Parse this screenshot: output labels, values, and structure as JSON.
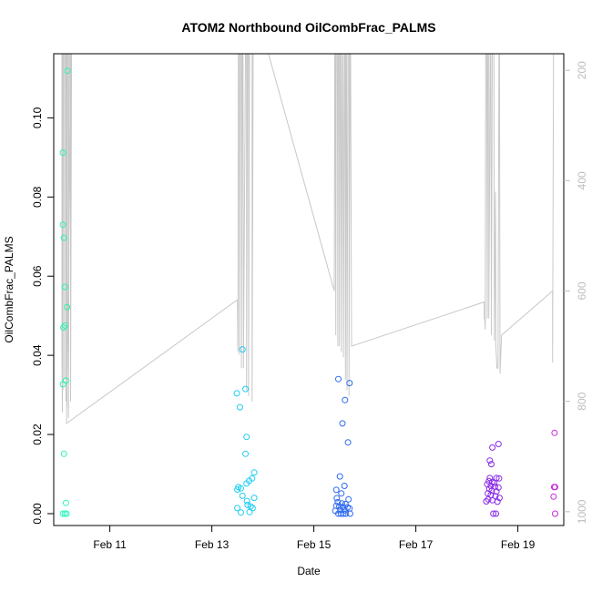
{
  "chart_data": {
    "type": "scatter",
    "title": "ATOM2 Northbound OilCombFrac_PALMS",
    "xlabel": "Date",
    "ylabel": "OilCombFrac_PALMS",
    "xlim": [
      9.9,
      19.9
    ],
    "ylim": [
      -0.003,
      0.1162
    ],
    "x_ticks": [
      {
        "value": 11,
        "label": "Feb 11"
      },
      {
        "value": 13,
        "label": "Feb 13"
      },
      {
        "value": 15,
        "label": "Feb 15"
      },
      {
        "value": 17,
        "label": "Feb 17"
      },
      {
        "value": 19,
        "label": "Feb 19"
      }
    ],
    "y_ticks": [
      {
        "value": 0.0,
        "label": "0.00"
      },
      {
        "value": 0.02,
        "label": "0.02"
      },
      {
        "value": 0.04,
        "label": "0.04"
      },
      {
        "value": 0.06,
        "label": "0.06"
      },
      {
        "value": 0.08,
        "label": "0.08"
      },
      {
        "value": 0.1,
        "label": "0.10"
      }
    ],
    "y2_lim": [
      1025,
      170
    ],
    "y2_ticks": [
      {
        "value": 200,
        "label": "200"
      },
      {
        "value": 400,
        "label": "400"
      },
      {
        "value": 600,
        "label": "600"
      },
      {
        "value": 800,
        "label": "800"
      },
      {
        "value": 1000,
        "label": "1000"
      }
    ],
    "y2_color": "#bdbdbd",
    "line_color": "#c8c8c8",
    "grid": false,
    "points": [
      {
        "x": 10.08,
        "y": 0.0912,
        "color": "#2af5a8"
      },
      {
        "x": 10.08,
        "y": 0.073,
        "color": "#2af5a8"
      },
      {
        "x": 10.1,
        "y": 0.0697,
        "color": "#2af5a8"
      },
      {
        "x": 10.12,
        "y": 0.0573,
        "color": "#2af5a8"
      },
      {
        "x": 10.16,
        "y": 0.0522,
        "color": "#2af5a8"
      },
      {
        "x": 10.09,
        "y": 0.047,
        "color": "#2af5a8"
      },
      {
        "x": 10.12,
        "y": 0.0475,
        "color": "#2af5a8"
      },
      {
        "x": 10.14,
        "y": 0.0336,
        "color": "#2af5a8"
      },
      {
        "x": 10.08,
        "y": 0.0327,
        "color": "#2af5a8"
      },
      {
        "x": 10.17,
        "y": 0.1119,
        "color": "#2af5a8"
      },
      {
        "x": 10.1,
        "y": 0.0151,
        "color": "#2af5ae"
      },
      {
        "x": 10.14,
        "y": 0.0027,
        "color": "#2ff5c0"
      },
      {
        "x": 10.08,
        "y": 0.0,
        "color": "#2ff5c0"
      },
      {
        "x": 10.12,
        "y": 0.0,
        "color": "#2ff5c0"
      },
      {
        "x": 10.15,
        "y": 0.0,
        "color": "#2ff5c0"
      },
      {
        "x": 13.49,
        "y": 0.0304,
        "color": "#1ecdf2"
      },
      {
        "x": 13.6,
        "y": 0.0415,
        "color": "#1ecdf2"
      },
      {
        "x": 13.55,
        "y": 0.0269,
        "color": "#1ecdf2"
      },
      {
        "x": 13.66,
        "y": 0.0315,
        "color": "#1ecdf2"
      },
      {
        "x": 13.68,
        "y": 0.0194,
        "color": "#1ecdf2"
      },
      {
        "x": 13.66,
        "y": 0.0151,
        "color": "#1ecdf2"
      },
      {
        "x": 13.83,
        "y": 0.0104,
        "color": "#1ecdf2"
      },
      {
        "x": 13.79,
        "y": 0.0089,
        "color": "#1ecdf2"
      },
      {
        "x": 13.73,
        "y": 0.0083,
        "color": "#1ecdf2"
      },
      {
        "x": 13.68,
        "y": 0.0076,
        "color": "#1ecdf2"
      },
      {
        "x": 13.52,
        "y": 0.0067,
        "color": "#1ecdf2"
      },
      {
        "x": 13.57,
        "y": 0.0064,
        "color": "#1ecdf2"
      },
      {
        "x": 13.5,
        "y": 0.0061,
        "color": "#1ecdf2"
      },
      {
        "x": 13.6,
        "y": 0.0045,
        "color": "#1ecdf2"
      },
      {
        "x": 13.83,
        "y": 0.004,
        "color": "#1ecdf2"
      },
      {
        "x": 13.69,
        "y": 0.0032,
        "color": "#1ecdf2"
      },
      {
        "x": 13.7,
        "y": 0.0022,
        "color": "#1ecdf2"
      },
      {
        "x": 13.76,
        "y": 0.0018,
        "color": "#1ecdf2"
      },
      {
        "x": 13.8,
        "y": 0.0014,
        "color": "#1ecdf2"
      },
      {
        "x": 13.5,
        "y": 0.0014,
        "color": "#1ecdf2"
      },
      {
        "x": 13.57,
        "y": 0.0003,
        "color": "#1ecdf2"
      },
      {
        "x": 13.74,
        "y": 0.0004,
        "color": "#1ecdf2"
      },
      {
        "x": 15.48,
        "y": 0.034,
        "color": "#2f6af0"
      },
      {
        "x": 15.7,
        "y": 0.033,
        "color": "#2f6af0"
      },
      {
        "x": 15.61,
        "y": 0.0287,
        "color": "#2f6af0"
      },
      {
        "x": 15.56,
        "y": 0.0228,
        "color": "#2f6af0"
      },
      {
        "x": 15.67,
        "y": 0.018,
        "color": "#2f6af0"
      },
      {
        "x": 15.51,
        "y": 0.0094,
        "color": "#2f6af0"
      },
      {
        "x": 15.6,
        "y": 0.007,
        "color": "#2f6af0"
      },
      {
        "x": 15.44,
        "y": 0.006,
        "color": "#2f6af0"
      },
      {
        "x": 15.54,
        "y": 0.0051,
        "color": "#2f6af0"
      },
      {
        "x": 15.45,
        "y": 0.0039,
        "color": "#2f6af0"
      },
      {
        "x": 15.68,
        "y": 0.0036,
        "color": "#2f6af0"
      },
      {
        "x": 15.47,
        "y": 0.0029,
        "color": "#2f6af0"
      },
      {
        "x": 15.55,
        "y": 0.0026,
        "color": "#2f6af0"
      },
      {
        "x": 15.62,
        "y": 0.0024,
        "color": "#2f6af0"
      },
      {
        "x": 15.44,
        "y": 0.002,
        "color": "#2f6af0"
      },
      {
        "x": 15.5,
        "y": 0.0018,
        "color": "#2f6af0"
      },
      {
        "x": 15.57,
        "y": 0.0017,
        "color": "#2f6af0"
      },
      {
        "x": 15.66,
        "y": 0.0016,
        "color": "#2f6af0"
      },
      {
        "x": 15.7,
        "y": 0.0013,
        "color": "#2f6af0"
      },
      {
        "x": 15.52,
        "y": 0.0009,
        "color": "#2f6af0"
      },
      {
        "x": 15.6,
        "y": 0.0008,
        "color": "#2f6af0"
      },
      {
        "x": 15.42,
        "y": 0.0007,
        "color": "#2f6af0"
      },
      {
        "x": 15.48,
        "y": 0.0,
        "color": "#2f6af0"
      },
      {
        "x": 15.53,
        "y": 0.0,
        "color": "#2f6af0"
      },
      {
        "x": 15.58,
        "y": 0.0,
        "color": "#2f6af0"
      },
      {
        "x": 15.63,
        "y": 0.0,
        "color": "#2f6af0"
      },
      {
        "x": 15.71,
        "y": 0.0,
        "color": "#2f6af0"
      },
      {
        "x": 18.45,
        "y": 0.0134,
        "color": "#8a2be8"
      },
      {
        "x": 18.48,
        "y": 0.0125,
        "color": "#8a2be8"
      },
      {
        "x": 18.5,
        "y": 0.0167,
        "color": "#8a2be8"
      },
      {
        "x": 18.62,
        "y": 0.0176,
        "color": "#8a2be8"
      },
      {
        "x": 18.45,
        "y": 0.009,
        "color": "#8a2be8"
      },
      {
        "x": 18.58,
        "y": 0.009,
        "color": "#8a2be8"
      },
      {
        "x": 18.63,
        "y": 0.0089,
        "color": "#8a2be8"
      },
      {
        "x": 18.43,
        "y": 0.0082,
        "color": "#8a2be8"
      },
      {
        "x": 18.5,
        "y": 0.008,
        "color": "#8a2be8"
      },
      {
        "x": 18.54,
        "y": 0.0078,
        "color": "#8a2be8"
      },
      {
        "x": 18.4,
        "y": 0.0074,
        "color": "#8a2be8"
      },
      {
        "x": 18.47,
        "y": 0.007,
        "color": "#8a2be8"
      },
      {
        "x": 18.55,
        "y": 0.0068,
        "color": "#8a2be8"
      },
      {
        "x": 18.62,
        "y": 0.0066,
        "color": "#8a2be8"
      },
      {
        "x": 18.44,
        "y": 0.0063,
        "color": "#8a2be8"
      },
      {
        "x": 18.49,
        "y": 0.0058,
        "color": "#8a2be8"
      },
      {
        "x": 18.58,
        "y": 0.0056,
        "color": "#8a2be8"
      },
      {
        "x": 18.41,
        "y": 0.0051,
        "color": "#8a2be8"
      },
      {
        "x": 18.47,
        "y": 0.0047,
        "color": "#8a2be8"
      },
      {
        "x": 18.56,
        "y": 0.0044,
        "color": "#8a2be8"
      },
      {
        "x": 18.64,
        "y": 0.004,
        "color": "#8a2be8"
      },
      {
        "x": 18.42,
        "y": 0.0036,
        "color": "#8a2be8"
      },
      {
        "x": 18.5,
        "y": 0.0034,
        "color": "#8a2be8"
      },
      {
        "x": 18.38,
        "y": 0.0031,
        "color": "#8a2be8"
      },
      {
        "x": 18.6,
        "y": 0.003,
        "color": "#8a2be8"
      },
      {
        "x": 18.52,
        "y": 0.0,
        "color": "#8a2be8"
      },
      {
        "x": 18.57,
        "y": 0.0,
        "color": "#8a2be8"
      },
      {
        "x": 19.72,
        "y": 0.0204,
        "color": "#c42ad6"
      },
      {
        "x": 19.71,
        "y": 0.0067,
        "color": "#c42ad6"
      },
      {
        "x": 19.73,
        "y": 0.0067,
        "color": "#c42ad6"
      },
      {
        "x": 19.7,
        "y": 0.0043,
        "color": "#c42ad6"
      },
      {
        "x": 19.73,
        "y": 0.0,
        "color": "#c42ad6"
      }
    ],
    "pressure_line": [
      [
        10.0,
        150
      ],
      [
        10.06,
        150
      ],
      [
        10.06,
        700
      ],
      [
        10.07,
        820
      ],
      [
        10.07,
        150
      ],
      [
        10.08,
        150
      ],
      [
        10.08,
        780
      ],
      [
        10.09,
        150
      ],
      [
        10.11,
        150
      ],
      [
        10.11,
        760
      ],
      [
        10.12,
        150
      ],
      [
        10.14,
        150
      ],
      [
        10.14,
        800
      ],
      [
        10.15,
        150
      ],
      [
        10.16,
        150
      ],
      [
        10.16,
        810
      ],
      [
        10.17,
        150
      ],
      [
        10.19,
        150
      ],
      [
        10.19,
        830
      ],
      [
        10.21,
        150
      ],
      [
        10.23,
        150
      ],
      [
        10.23,
        800
      ],
      [
        10.25,
        150
      ],
      [
        10.15,
        840
      ],
      [
        13.5,
        616
      ],
      [
        13.51,
        710
      ],
      [
        13.52,
        150
      ],
      [
        13.54,
        150
      ],
      [
        13.54,
        715
      ],
      [
        13.56,
        150
      ],
      [
        13.58,
        150
      ],
      [
        13.58,
        740
      ],
      [
        13.6,
        150
      ],
      [
        13.61,
        150
      ],
      [
        13.62,
        740
      ],
      [
        13.66,
        150
      ],
      [
        13.68,
        150
      ],
      [
        13.68,
        780
      ],
      [
        13.7,
        150
      ],
      [
        13.72,
        150
      ],
      [
        13.72,
        790
      ],
      [
        13.74,
        150
      ],
      [
        13.79,
        150
      ],
      [
        13.79,
        800
      ],
      [
        13.81,
        150
      ],
      [
        14.05,
        150
      ],
      [
        15.4,
        600
      ],
      [
        15.41,
        150
      ],
      [
        15.42,
        150
      ],
      [
        15.43,
        680
      ],
      [
        15.44,
        150
      ],
      [
        15.46,
        150
      ],
      [
        15.47,
        700
      ],
      [
        15.48,
        150
      ],
      [
        15.5,
        150
      ],
      [
        15.5,
        700
      ],
      [
        15.52,
        150
      ],
      [
        15.53,
        150
      ],
      [
        15.54,
        710
      ],
      [
        15.56,
        150
      ],
      [
        15.57,
        150
      ],
      [
        15.58,
        720
      ],
      [
        15.6,
        150
      ],
      [
        15.61,
        150
      ],
      [
        15.62,
        760
      ],
      [
        15.63,
        150
      ],
      [
        15.64,
        150
      ],
      [
        15.65,
        780
      ],
      [
        15.67,
        150
      ],
      [
        15.69,
        150
      ],
      [
        15.69,
        790
      ],
      [
        15.71,
        150
      ],
      [
        15.72,
        150
      ],
      [
        15.74,
        700
      ],
      [
        18.34,
        620
      ],
      [
        18.34,
        650
      ],
      [
        18.35,
        650
      ],
      [
        18.36,
        670
      ],
      [
        18.37,
        150
      ],
      [
        18.39,
        150
      ],
      [
        18.4,
        650
      ],
      [
        18.41,
        150
      ],
      [
        18.43,
        150
      ],
      [
        18.43,
        650
      ],
      [
        18.46,
        150
      ],
      [
        18.47,
        150
      ],
      [
        18.48,
        680
      ],
      [
        18.5,
        150
      ],
      [
        18.53,
        150
      ],
      [
        18.54,
        690
      ],
      [
        18.56,
        420
      ],
      [
        18.57,
        700
      ],
      [
        18.59,
        740
      ],
      [
        18.61,
        740
      ],
      [
        18.63,
        150
      ],
      [
        18.64,
        150
      ],
      [
        18.65,
        750
      ],
      [
        18.68,
        680
      ],
      [
        19.68,
        600
      ],
      [
        19.68,
        730
      ],
      [
        19.7,
        150
      ]
    ]
  }
}
